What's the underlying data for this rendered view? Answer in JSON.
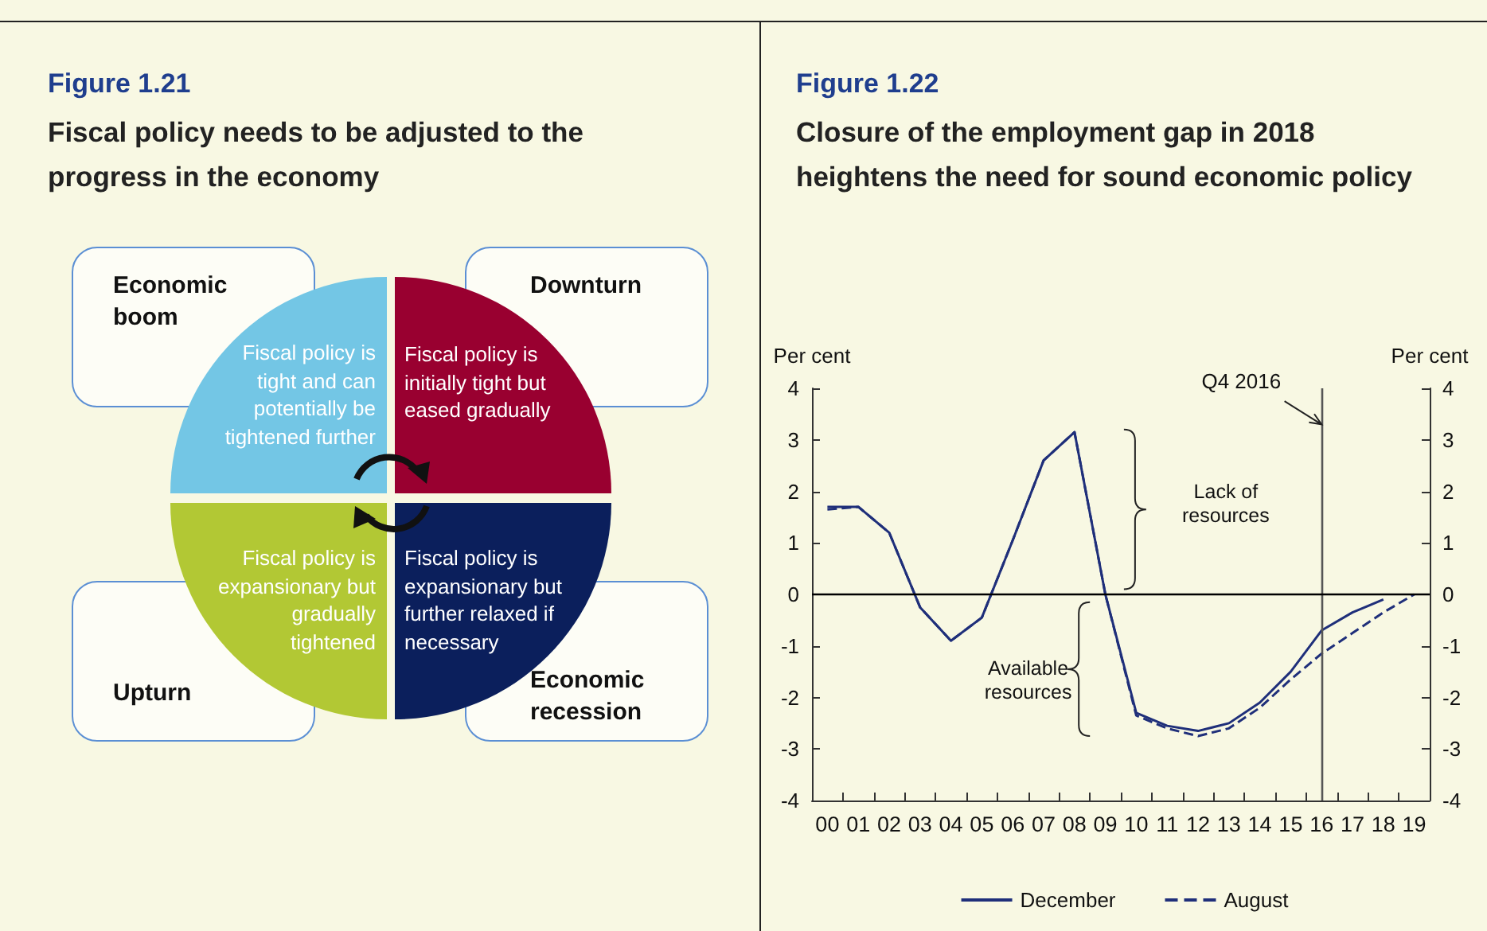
{
  "chart_data": [
    {
      "type": "other",
      "title": "Figure 1.21",
      "subtitle": "Fiscal policy needs to be adjusted to the progress in the economy",
      "annotations": [
        "Economic boom",
        "Downturn",
        "Upturn",
        "Economic recession",
        "Fiscal policy is tight and can potentially be tightened further",
        "Fiscal policy is initially tight but eased gradually",
        "Fiscal policy is expansionary but gradually tightened",
        "Fiscal policy is expansionary but further relaxed if necessary"
      ]
    },
    {
      "type": "line",
      "title": "Figure 1.22",
      "subtitle": "Closure of the employment gap in 2018 heightens the need for sound economic policy",
      "ylabel": "Per cent",
      "y2label": "Per cent",
      "categories": [
        "00",
        "01",
        "02",
        "03",
        "04",
        "05",
        "06",
        "07",
        "08",
        "09",
        "10",
        "11",
        "12",
        "13",
        "14",
        "15",
        "16",
        "17",
        "18",
        "19"
      ],
      "series": [
        {
          "name": "December",
          "color": "#1f2f7a",
          "line_style": "solid",
          "values": [
            1.7,
            1.7,
            1.2,
            -0.25,
            -0.9,
            -0.45,
            1.05,
            2.6,
            3.15,
            0.0,
            -2.3,
            -2.55,
            -2.65,
            -2.5,
            -2.1,
            -1.5,
            -0.7,
            -0.35,
            -0.1,
            null
          ]
        },
        {
          "name": "August",
          "color": "#1f2f7a",
          "line_style": "dashed",
          "values": [
            1.65,
            1.7,
            1.2,
            -0.25,
            -0.9,
            -0.45,
            1.05,
            2.6,
            3.15,
            0.0,
            -2.35,
            -2.6,
            -2.75,
            -2.6,
            -2.2,
            -1.65,
            -1.15,
            -0.75,
            -0.35,
            0.0
          ]
        }
      ],
      "ylim": [
        -4,
        4
      ],
      "yticks": [
        -4,
        -3,
        -2,
        -1,
        0,
        1,
        2,
        3,
        4
      ],
      "y2lim": [
        -4,
        4
      ],
      "y2ticks": [
        -4,
        -3,
        -2,
        -1,
        0,
        1,
        2,
        3,
        4
      ],
      "ref_lines": [
        {
          "axis": "x",
          "value": "16",
          "color": "#555555"
        },
        {
          "axis": "y",
          "value": 0,
          "color": "#000000"
        }
      ],
      "annotations": [
        {
          "text": "Q4 2016",
          "x": "16",
          "y": 3.3
        },
        "Lack of resources",
        "Available resources"
      ],
      "grid": false,
      "legend": "bottom",
      "marker": "none"
    }
  ]
}
